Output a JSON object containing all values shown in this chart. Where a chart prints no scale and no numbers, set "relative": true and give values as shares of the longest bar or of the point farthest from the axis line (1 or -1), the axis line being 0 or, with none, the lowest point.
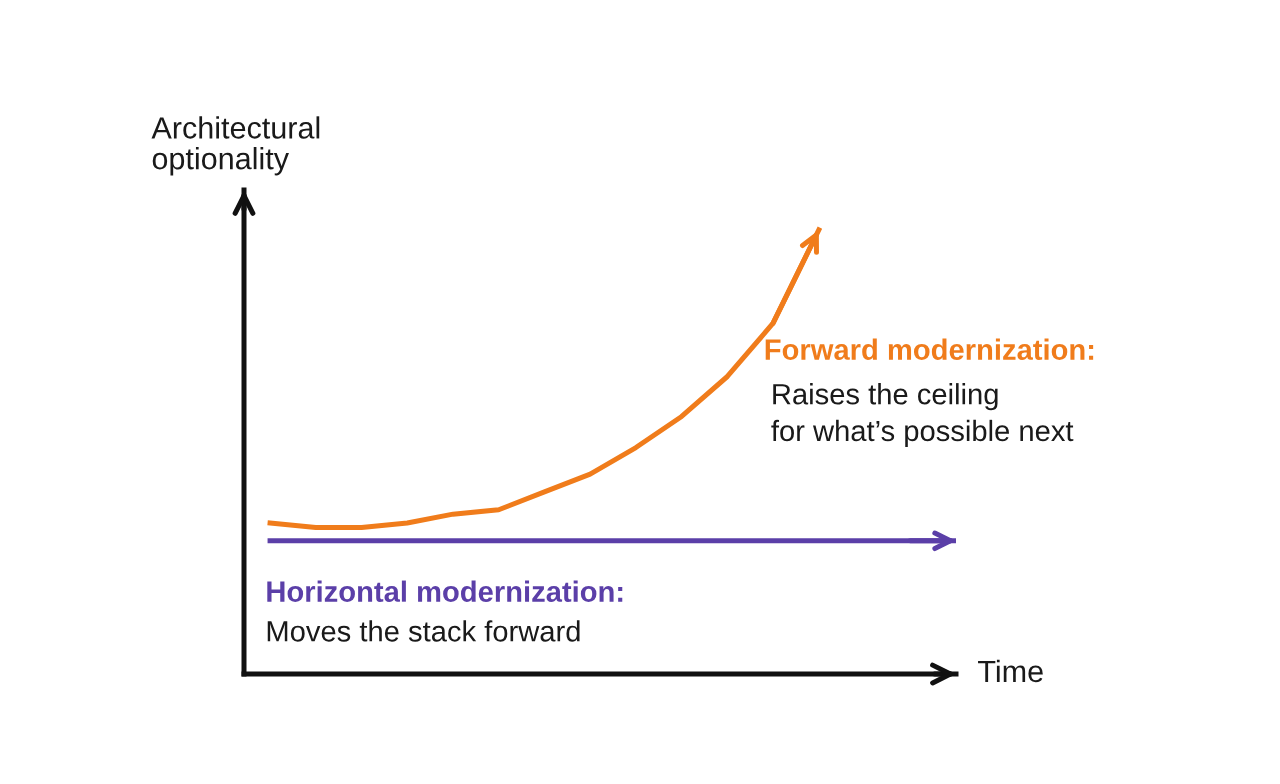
{
  "chart_data": {
    "type": "line",
    "relative": true,
    "xlabel": "Time",
    "ylabel": "Architectural\noptionality",
    "categories": [
      null,
      null,
      null,
      null,
      null,
      null,
      null,
      null,
      null,
      null,
      null,
      null,
      null,
      null,
      null,
      null
    ],
    "series": [
      {
        "name": "Forward modernization:",
        "color": "#f07c1b",
        "values": [
          0.34,
          0.33,
          0.33,
          0.34,
          0.36,
          0.37,
          0.41,
          0.45,
          0.51,
          0.58,
          0.67,
          0.79,
          1,
          null,
          null,
          null
        ]
      },
      {
        "name": "Horizontal modernization:",
        "color": "#5b3fa8",
        "values": [
          0.3,
          0.3,
          0.3,
          0.3,
          0.3,
          0.3,
          0.3,
          0.3,
          0.3,
          0.3,
          0.3,
          0.3,
          0.3,
          0.3,
          0.3,
          0.3
        ]
      }
    ],
    "annotations": [
      "Raises the ceiling\nfor what’s possible next",
      "Moves the stack forward"
    ],
    "legend": false,
    "marker": "none",
    "line_style": "solid",
    "tick_labels": false
  }
}
